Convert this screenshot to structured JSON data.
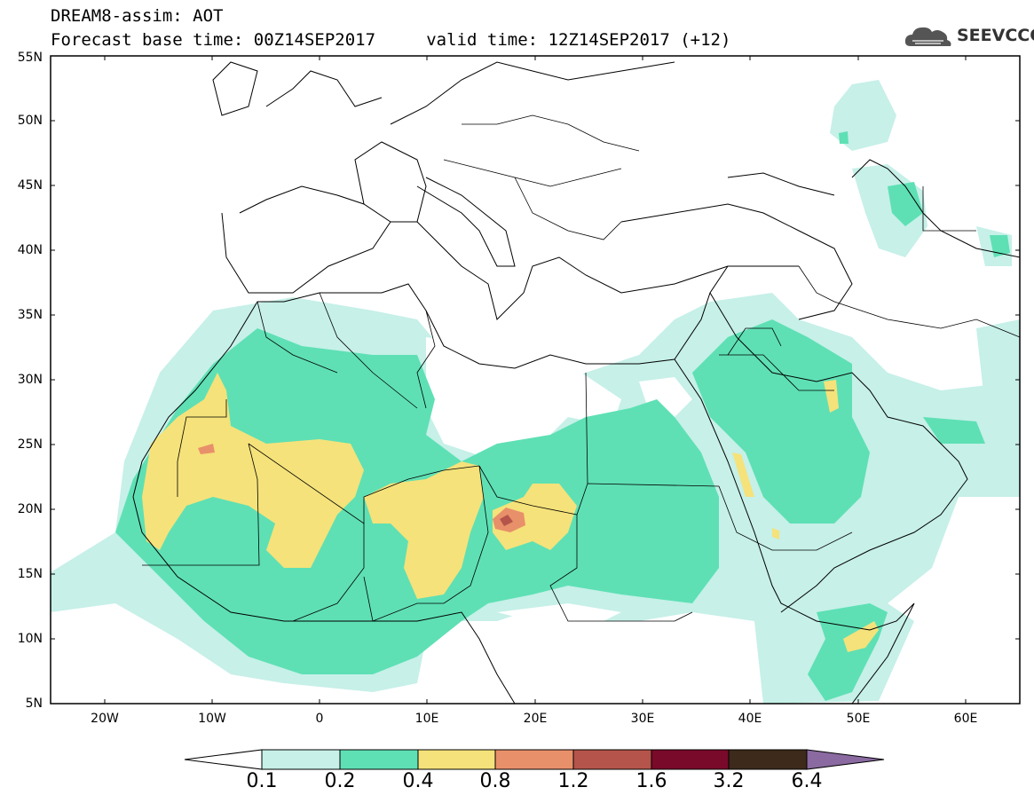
{
  "header": {
    "title_line1": "DREAM8-assim: AOT",
    "title_line2": "Forecast base time: 00Z14SEP2017     valid time: 12Z14SEP2017 (+12)"
  },
  "logo": {
    "text": "SEEVCCC",
    "icon": "cloud-icon"
  },
  "map": {
    "lon_range": [
      -25,
      65
    ],
    "lat_range": [
      5,
      55
    ],
    "lat_ticks": [
      "5N",
      "10N",
      "15N",
      "20N",
      "25N",
      "30N",
      "35N",
      "40N",
      "45N",
      "50N",
      "55N"
    ],
    "lon_ticks": [
      "20W",
      "10W",
      "0",
      "10E",
      "20E",
      "30E",
      "40E",
      "50E",
      "60E"
    ]
  },
  "colorbar": {
    "levels": [
      "0.1",
      "0.2",
      "0.4",
      "0.8",
      "1.2",
      "1.6",
      "3.2",
      "6.4"
    ],
    "colors": [
      "#c6f0e8",
      "#5ee0b4",
      "#f5e27a",
      "#e8906a",
      "#b5544a",
      "#7a0a2a",
      "#3d2a1a"
    ],
    "under_color": "#ffffff",
    "over_color": "#8a6aa0"
  }
}
